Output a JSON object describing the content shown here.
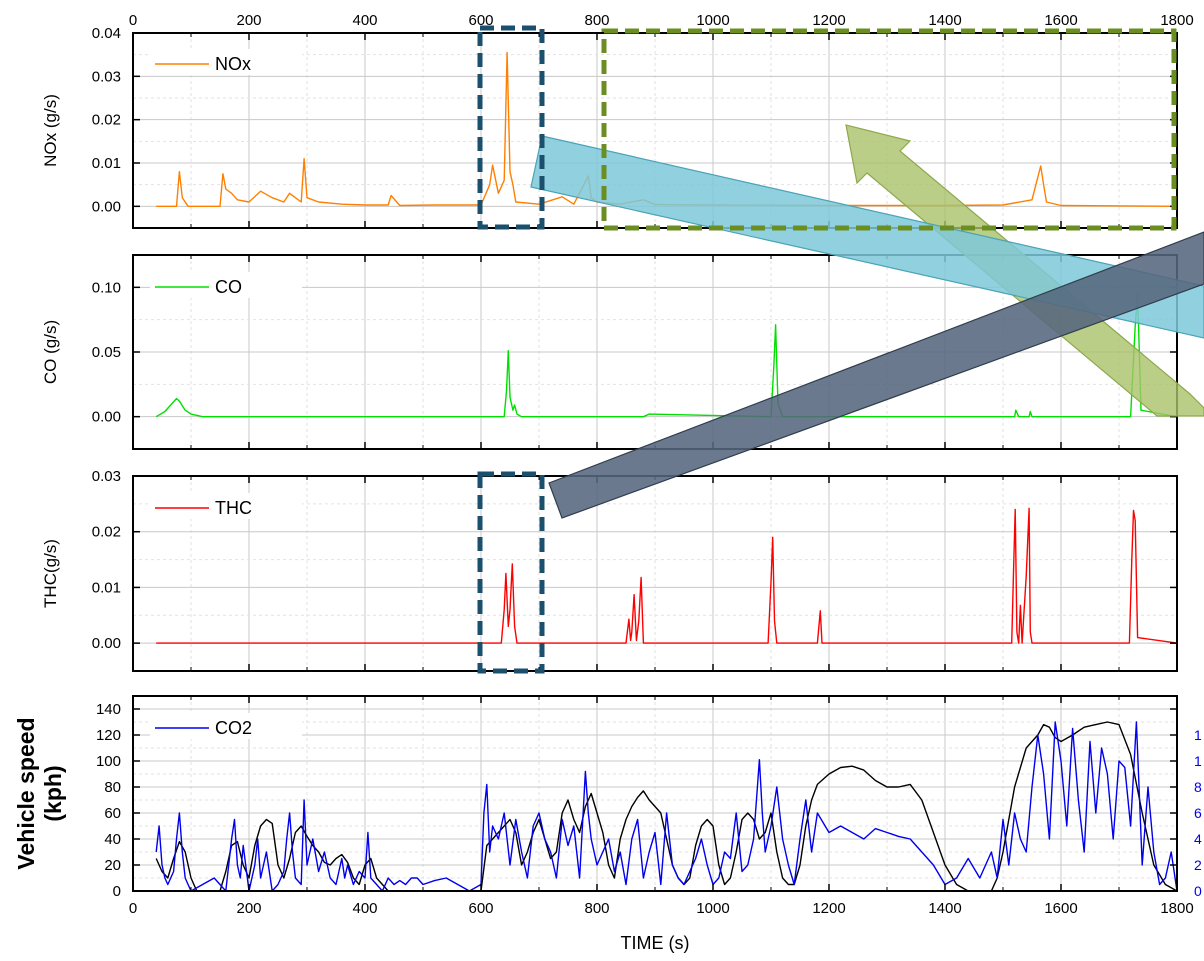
{
  "figure": {
    "x_axis": {
      "label": "TIME (s)",
      "range": [
        0,
        1800
      ],
      "ticks": [
        "0",
        "200",
        "400",
        "600",
        "800",
        "1000",
        "1200",
        "1400",
        "1600",
        "1800"
      ]
    },
    "colors": {
      "nox": "#ff8000",
      "co": "#00e000",
      "thc": "#ff0000",
      "co2": "#0000ee",
      "speed": "#000000",
      "box_blue": "#1b4f6e",
      "box_olive": "#6b8e23",
      "arrow_teal": "#7ec8d8",
      "arrow_green": "#a9c26a",
      "arrow_slate": "#55677d"
    },
    "overlays": [
      "dashed-box-blue-top",
      "dashed-box-olive-top",
      "dashed-box-blue-thc",
      "teal-arrow",
      "green-arrow",
      "slate-arrow"
    ]
  },
  "chart_data": [
    {
      "type": "line",
      "id": "nox",
      "ylabel": "NOx (g/s)",
      "ylim": [
        -0.005,
        0.04
      ],
      "yticks": [
        "0.00",
        "0.01",
        "0.02",
        "0.03",
        "0.04"
      ],
      "grid": true,
      "legend_placement": "top-left",
      "series": [
        {
          "name": "NOx",
          "x": [
            40,
            75,
            80,
            85,
            95,
            150,
            155,
            160,
            170,
            180,
            200,
            220,
            240,
            260,
            270,
            280,
            290,
            295,
            300,
            320,
            360,
            400,
            440,
            445,
            460,
            520,
            560,
            600,
            615,
            620,
            630,
            640,
            645,
            650,
            655,
            660,
            700,
            740,
            760,
            785,
            790,
            800,
            840,
            880,
            900,
            1000,
            1200,
            1400,
            1500,
            1550,
            1565,
            1570,
            1575,
            1600,
            1800
          ],
          "values": [
            0,
            0,
            0.008,
            0.002,
            0,
            0,
            0.0075,
            0.004,
            0.003,
            0.0015,
            0.001,
            0.0035,
            0.002,
            0.001,
            0.003,
            0.002,
            0.001,
            0.011,
            0.002,
            0.001,
            0.0005,
            0.0003,
            0.0003,
            0.0025,
            0.0002,
            0.0003,
            0.0003,
            0.0003,
            0.005,
            0.0095,
            0.003,
            0.006,
            0.0355,
            0.008,
            0.005,
            0.001,
            0.0005,
            0.0022,
            0.0005,
            0.007,
            0.002,
            0.001,
            0.0005,
            0.0015,
            0.0004,
            0.0003,
            0.0002,
            0.0002,
            0.0003,
            0.0015,
            0.0093,
            0.005,
            0.001,
            0.0002,
            0
          ]
        }
      ]
    },
    {
      "type": "line",
      "id": "co",
      "ylabel": "CO (g/s)",
      "ylim": [
        -0.025,
        0.125
      ],
      "yticks": [
        "0.00",
        "0.05",
        "0.10"
      ],
      "grid": true,
      "legend_placement": "top-left",
      "series": [
        {
          "name": "CO",
          "x": [
            40,
            55,
            65,
            75,
            80,
            90,
            100,
            120,
            640,
            644,
            647,
            650,
            655,
            658,
            662,
            670,
            700,
            880,
            890,
            1100,
            1105,
            1108,
            1112,
            1120,
            1520,
            1522,
            1527,
            1545,
            1547,
            1550,
            1720,
            1728,
            1732,
            1738,
            1800
          ],
          "values": [
            0,
            0.004,
            0.009,
            0.014,
            0.012,
            0.005,
            0.002,
            0,
            0,
            0.02,
            0.051,
            0.015,
            0.005,
            0.009,
            0.002,
            0,
            0,
            0,
            0.002,
            0,
            0.04,
            0.071,
            0.01,
            0,
            0,
            0.005,
            0,
            0,
            0.004,
            0,
            0,
            0.07,
            0.095,
            0.005,
            0
          ]
        }
      ]
    },
    {
      "type": "line",
      "id": "thc",
      "ylabel": "THC(g/s)",
      "ylim": [
        -0.005,
        0.03
      ],
      "yticks": [
        "0.00",
        "0.01",
        "0.02",
        "0.03"
      ],
      "grid": true,
      "legend_placement": "top-left",
      "series": [
        {
          "name": "THC",
          "x": [
            40,
            635,
            640,
            643,
            647,
            650,
            654,
            658,
            662,
            850,
            855,
            858,
            860,
            864,
            868,
            872,
            876,
            880,
            1095,
            1100,
            1103,
            1106,
            1110,
            1180,
            1185,
            1188,
            1515,
            1518,
            1521,
            1524,
            1527,
            1530,
            1533,
            1540,
            1545,
            1547,
            1550,
            1718,
            1722,
            1725,
            1728,
            1732,
            1800
          ],
          "values": [
            0,
            0,
            0.006,
            0.0125,
            0.003,
            0.006,
            0.0142,
            0.003,
            0,
            0,
            0.0043,
            0.0005,
            0.002,
            0.0087,
            0.0005,
            0.004,
            0.0118,
            0,
            0,
            0.011,
            0.019,
            0.004,
            0,
            0,
            0.0058,
            0,
            0,
            0.012,
            0.024,
            0.002,
            0,
            0.0068,
            0,
            0.012,
            0.0242,
            0.002,
            0,
            0,
            0.015,
            0.0238,
            0.022,
            0.001,
            0
          ]
        }
      ]
    },
    {
      "type": "line",
      "id": "speed_co2",
      "ylabel": "Vehicle speed\n(kph)",
      "ylim": [
        0,
        150
      ],
      "yticks": [
        "0",
        "20",
        "40",
        "60",
        "80",
        "100",
        "120",
        "140"
      ],
      "right_yticks": [
        "0",
        "2",
        "4",
        "6",
        "8",
        "1",
        "1"
      ],
      "grid": true,
      "legend_placement": "top-left",
      "series": [
        {
          "name": "",
          "x": [
            40,
            50,
            60,
            70,
            80,
            90,
            100,
            110,
            130,
            150,
            160,
            170,
            180,
            190,
            200,
            210,
            220,
            230,
            240,
            250,
            260,
            270,
            280,
            290,
            300,
            310,
            320,
            330,
            340,
            350,
            360,
            370,
            380,
            390,
            400,
            410,
            420,
            430,
            440,
            450,
            460,
            470,
            480,
            490,
            500,
            510,
            520,
            530,
            540,
            550,
            560,
            570,
            580,
            590,
            600,
            610,
            620,
            630,
            640,
            650,
            660,
            670,
            680,
            690,
            700,
            710,
            720,
            730,
            740,
            750,
            760,
            770,
            780,
            790,
            800,
            810,
            820,
            830,
            840,
            850,
            860,
            870,
            880,
            890,
            900,
            910,
            920,
            930,
            940,
            950,
            960,
            970,
            980,
            990,
            1000,
            1010,
            1020,
            1030,
            1040,
            1050,
            1060,
            1070,
            1080,
            1090,
            1100,
            1110,
            1120,
            1130,
            1140,
            1150,
            1160,
            1170,
            1180,
            1200,
            1220,
            1240,
            1260,
            1280,
            1300,
            1320,
            1340,
            1360,
            1380,
            1400,
            1420,
            1440,
            1460,
            1480,
            1490,
            1500,
            1510,
            1520,
            1530,
            1540,
            1550,
            1560,
            1570,
            1580,
            1590,
            1600,
            1620,
            1640,
            1660,
            1680,
            1700,
            1720,
            1740,
            1760,
            1780,
            1800
          ],
          "values": [
            25,
            15,
            10,
            25,
            38,
            30,
            10,
            0,
            0,
            0,
            15,
            35,
            38,
            20,
            10,
            35,
            50,
            55,
            52,
            20,
            10,
            25,
            45,
            50,
            42,
            35,
            30,
            22,
            20,
            25,
            28,
            22,
            10,
            5,
            20,
            25,
            10,
            5,
            0,
            0,
            0,
            0,
            0,
            0,
            0,
            0,
            0,
            0,
            0,
            0,
            0,
            0,
            0,
            0,
            0,
            35,
            40,
            45,
            50,
            55,
            45,
            20,
            30,
            45,
            55,
            40,
            25,
            30,
            60,
            70,
            55,
            45,
            65,
            75,
            60,
            45,
            20,
            10,
            40,
            55,
            65,
            72,
            77,
            70,
            65,
            60,
            40,
            20,
            10,
            5,
            10,
            35,
            50,
            55,
            50,
            20,
            5,
            10,
            30,
            55,
            60,
            55,
            40,
            45,
            60,
            30,
            10,
            5,
            5,
            20,
            50,
            70,
            82,
            90,
            95,
            96,
            93,
            85,
            80,
            80,
            82,
            70,
            45,
            20,
            5,
            0,
            0,
            0,
            10,
            30,
            55,
            80,
            95,
            110,
            115,
            120,
            128,
            126,
            118,
            115,
            120,
            126,
            128,
            130,
            128,
            105,
            60,
            20,
            5,
            0
          ]
        },
        {
          "name": "CO2",
          "x": [
            40,
            45,
            50,
            55,
            60,
            70,
            75,
            80,
            85,
            90,
            100,
            120,
            140,
            150,
            160,
            170,
            175,
            180,
            185,
            190,
            200,
            210,
            215,
            220,
            230,
            240,
            250,
            260,
            265,
            270,
            275,
            280,
            290,
            295,
            300,
            310,
            320,
            330,
            340,
            350,
            360,
            365,
            370,
            380,
            390,
            400,
            405,
            410,
            420,
            430,
            440,
            450,
            460,
            470,
            480,
            490,
            500,
            520,
            540,
            560,
            580,
            600,
            605,
            610,
            615,
            620,
            630,
            640,
            650,
            660,
            670,
            680,
            690,
            700,
            710,
            720,
            730,
            740,
            750,
            760,
            770,
            780,
            785,
            790,
            800,
            810,
            820,
            830,
            840,
            850,
            860,
            870,
            880,
            890,
            900,
            910,
            920,
            930,
            940,
            950,
            960,
            970,
            980,
            990,
            1000,
            1010,
            1020,
            1030,
            1040,
            1050,
            1060,
            1070,
            1080,
            1085,
            1090,
            1100,
            1110,
            1120,
            1130,
            1140,
            1150,
            1160,
            1170,
            1180,
            1200,
            1220,
            1240,
            1260,
            1280,
            1300,
            1320,
            1340,
            1360,
            1380,
            1400,
            1420,
            1440,
            1460,
            1480,
            1490,
            1500,
            1510,
            1520,
            1530,
            1540,
            1550,
            1560,
            1570,
            1580,
            1590,
            1600,
            1610,
            1620,
            1630,
            1640,
            1650,
            1660,
            1670,
            1680,
            1690,
            1700,
            1710,
            1720,
            1730,
            1740,
            1750,
            1760,
            1770,
            1780,
            1790,
            1800
          ],
          "values": [
            30,
            50,
            20,
            10,
            5,
            15,
            40,
            60,
            30,
            10,
            0,
            5,
            10,
            5,
            0,
            40,
            55,
            20,
            10,
            35,
            0,
            20,
            40,
            10,
            30,
            0,
            5,
            15,
            40,
            60,
            30,
            10,
            5,
            70,
            20,
            40,
            15,
            30,
            10,
            5,
            25,
            10,
            20,
            5,
            15,
            10,
            45,
            10,
            5,
            0,
            10,
            5,
            8,
            5,
            10,
            10,
            5,
            8,
            10,
            5,
            0,
            5,
            60,
            82,
            30,
            50,
            40,
            60,
            20,
            55,
            30,
            10,
            50,
            60,
            40,
            30,
            10,
            55,
            35,
            50,
            10,
            92,
            60,
            40,
            20,
            30,
            40,
            15,
            30,
            5,
            40,
            55,
            10,
            30,
            45,
            5,
            60,
            20,
            10,
            5,
            15,
            25,
            40,
            20,
            5,
            10,
            30,
            25,
            60,
            15,
            20,
            40,
            101,
            60,
            30,
            50,
            80,
            40,
            20,
            5,
            40,
            70,
            30,
            60,
            45,
            50,
            45,
            40,
            48,
            45,
            42,
            40,
            30,
            20,
            5,
            10,
            25,
            10,
            30,
            10,
            55,
            20,
            60,
            40,
            30,
            80,
            120,
            90,
            40,
            130,
            100,
            50,
            125,
            70,
            30,
            115,
            60,
            110,
            90,
            40,
            100,
            95,
            50,
            130,
            20,
            80,
            30,
            5,
            10,
            30,
            0
          ]
        }
      ]
    }
  ]
}
